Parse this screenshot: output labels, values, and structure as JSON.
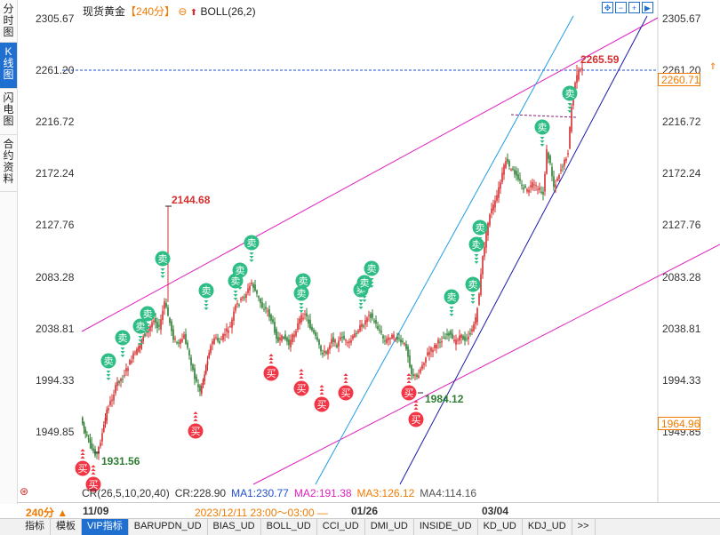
{
  "side_tabs": [
    {
      "label": "分时图",
      "active": false
    },
    {
      "label": "K线图",
      "active": true
    },
    {
      "label": "闪电图",
      "active": false
    },
    {
      "label": "合约资料",
      "active": false
    }
  ],
  "header": {
    "instrument": "现货黄金",
    "period": "【240分】",
    "indicator": "BOLL(26,2)"
  },
  "top_icons": [
    "crosshair-icon",
    "zoom-out-icon",
    "zoom-in-icon",
    "move-right-icon"
  ],
  "price_axis": {
    "right_labels": [
      "2305.67",
      "2261.20",
      "2216.72",
      "2172.24",
      "2127.76",
      "2083.28",
      "2038.81",
      "1994.33",
      "1949.85"
    ],
    "left_labels": [
      "2305.67",
      "2261.20",
      "2216.72",
      "2172.24",
      "2127.76",
      "2083.28",
      "2038.81",
      "1994.33",
      "1949.85"
    ],
    "current_price": "2260.71",
    "low_marker": "1964.96"
  },
  "annotations": {
    "high_1": "2144.68",
    "high_2": "2265.59",
    "low_1": "1931.56",
    "low_2": "1984.12"
  },
  "signals": {
    "sell_label": "卖",
    "buy_label": "买"
  },
  "indicator_line": {
    "cr": "CR(26,5,10,20,40)",
    "cr_value": "CR:228.90",
    "ma1": "MA1:230.77",
    "ma2": "MA2:191.38",
    "ma3": "MA3:126.12",
    "ma4": "MA4:114.16"
  },
  "colors": {
    "ma1": "#1f4fd1",
    "ma2": "#e020c0",
    "ma3": "#f07b00",
    "ma4": "#555555",
    "up": "#d32f2f",
    "down": "#2e7d32",
    "sell": "#2ebd85",
    "buy": "#f23645"
  },
  "date_bar": {
    "period_select": "240分 ▲",
    "dates": [
      "11/09",
      "01/26",
      "03/04"
    ],
    "range": "2023/12/11 23:00～03:00 —"
  },
  "bottom_tabs": [
    {
      "label": "指标",
      "active": false
    },
    {
      "label": "模板",
      "active": false
    },
    {
      "label": "VIP指标",
      "active": true
    },
    {
      "label": "BARUPDN_UD",
      "active": false
    },
    {
      "label": "BIAS_UD",
      "active": false
    },
    {
      "label": "BOLL_UD",
      "active": false
    },
    {
      "label": "CCI_UD",
      "active": false
    },
    {
      "label": "DMI_UD",
      "active": false
    },
    {
      "label": "INSIDE_UD",
      "active": false
    },
    {
      "label": "KD_UD",
      "active": false
    },
    {
      "label": "KDJ_UD",
      "active": false
    },
    {
      "label": ">>",
      "active": false
    }
  ]
}
